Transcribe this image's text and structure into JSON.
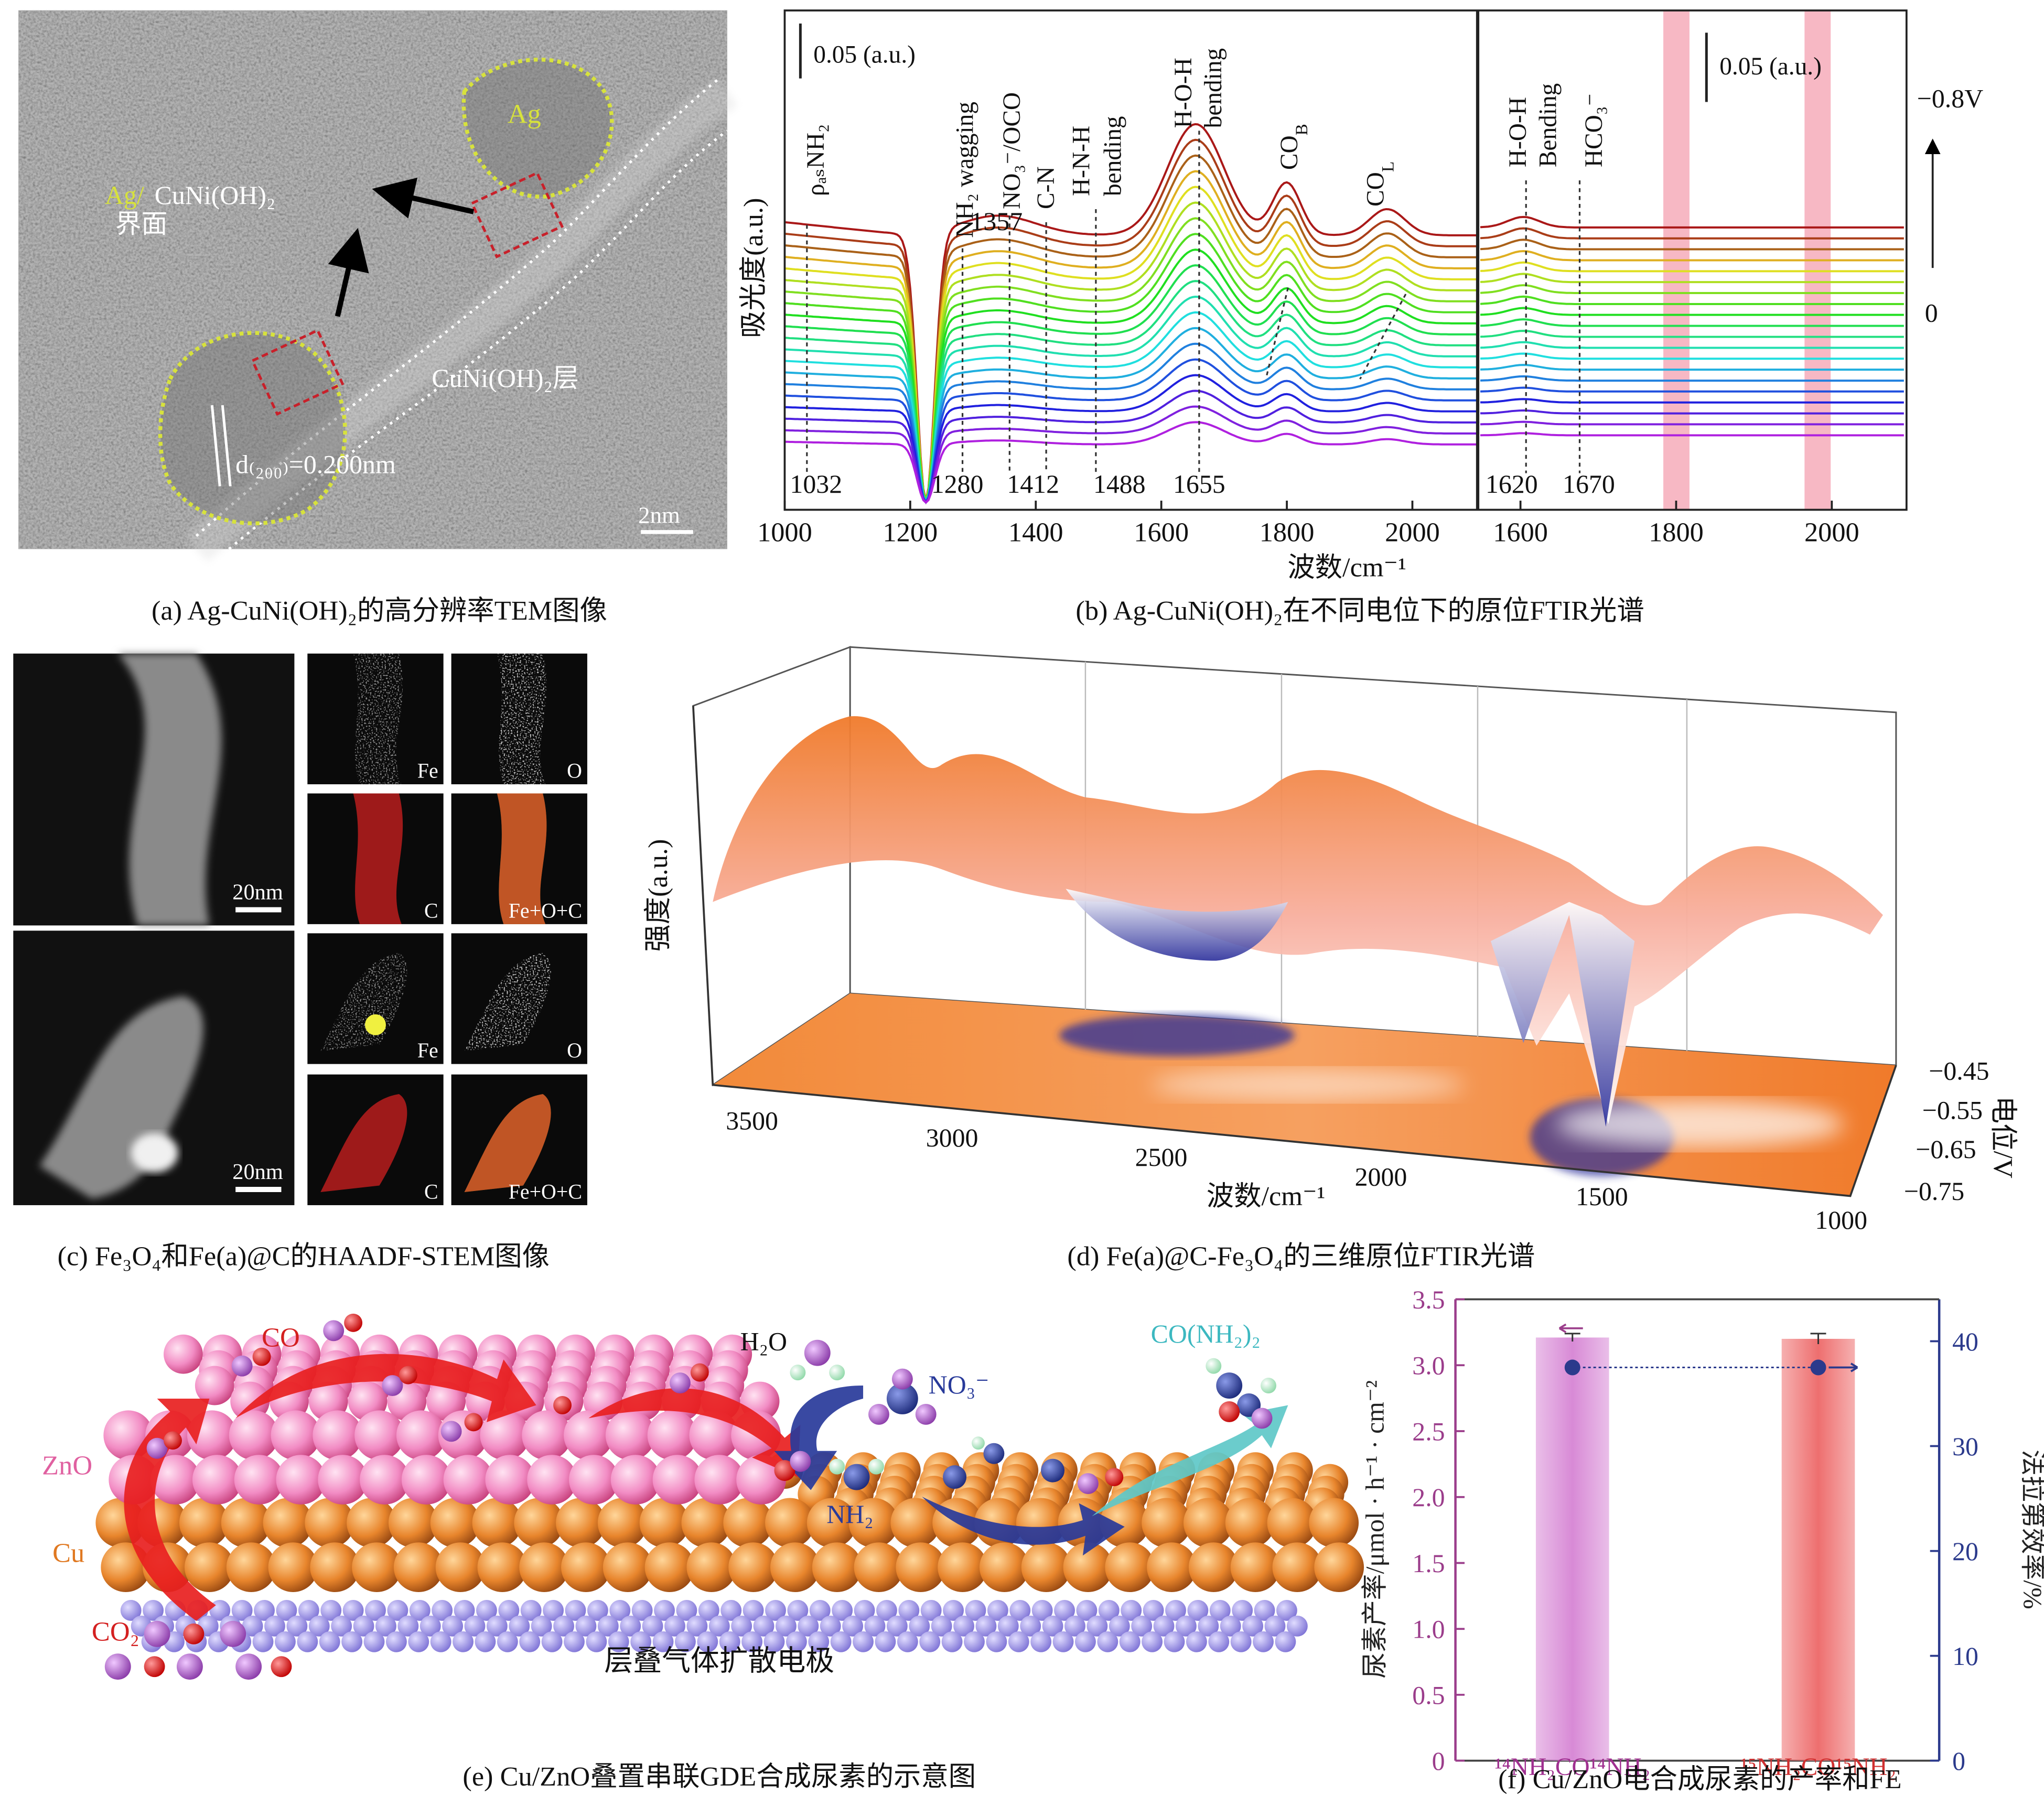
{
  "figure": {
    "a": {
      "caption": "(a) Ag-CuNi(OH)₂的高分辨率TEM图像",
      "ag": "Ag",
      "interface_ag": "Ag/",
      "interface_phase": "CuNi(OH)₂",
      "interface_word": "界面",
      "layer": "CuNi(OH)₂层",
      "spacing": "d₍₂₀₀₎=0.200nm",
      "scale": "2nm"
    },
    "b": {
      "caption": "(b) Ag-CuNi(OH)₂在不同电位下的原位FTIR光谱",
      "y_label": "吸光度(a.u.)",
      "x_label": "波数/cm⁻¹",
      "scale_left": "0.05 (a.u.)",
      "scale_right": "0.05 (a.u.)",
      "potential_top": "−0.8V",
      "potential_bottom": "0",
      "annotations_left": [
        "ρₐₛNH₂",
        "NH₂ wagging",
        "NO₃⁻/OCO",
        "C-N",
        "H-N-H",
        "bending",
        "H-O-H",
        "bending",
        [
          "CO",
          "B"
        ],
        [
          "CO",
          "L"
        ]
      ],
      "positions_left": [
        "1032",
        "1280",
        "1357",
        "1412",
        "1488",
        "1655"
      ],
      "annotations_right": [
        "H-O-H",
        "Bending",
        "HCO₃⁻"
      ],
      "positions_right": [
        "1620",
        "1670"
      ],
      "xlim_left": [
        1000,
        2104
      ],
      "xticks_left": [
        1000,
        1200,
        1400,
        1600,
        1800,
        2000
      ],
      "xlim_right": [
        1545,
        2096
      ],
      "xticks_right": [
        1600,
        1800,
        2000
      ]
    },
    "c": {
      "caption": "(c) Fe₃O₄和Fe(a)@C的HAADF-STEM图像",
      "fe": "Fe",
      "o": "O",
      "c": "C",
      "merged": "Fe+O+C",
      "scale": "20nm"
    },
    "d": {
      "caption": "(d) Fe(a)@C-Fe₃O₄的三维原位FTIR光谱",
      "y_label": "强度(a.u.)",
      "x_label": "波数/cm⁻¹",
      "z_label": "电位/V",
      "x_ticks": [
        "3500",
        "3000",
        "2500",
        "2000",
        "1500",
        "1000"
      ],
      "z_ticks": [
        "−0.45",
        "−0.55",
        "−0.65",
        "−0.75"
      ]
    },
    "e": {
      "caption": "(e) Cu/ZnO叠置串联GDE合成尿素的示意图",
      "co": "CO",
      "h2o": "H₂O",
      "no3": "NO₃⁻",
      "urea": "CO(NH₂)₂",
      "zno": "ZnO",
      "cu": "Cu",
      "co2": "CO₂",
      "nh2": "NH₂",
      "electrode": "层叠气体扩散电极"
    }
  },
  "chart_data": {
    "type": "bar",
    "caption": "(f) Cu/ZnO电合成尿素的产率和FE",
    "categories": [
      "¹⁴NH₂CO¹⁴NH₂",
      "¹⁵NH₂CO¹⁵NH₂"
    ],
    "series": [
      {
        "values": [
          3.21,
          3.2
        ],
        "errors": [
          0.03,
          0.04
        ],
        "colors": [
          "#d88ad6",
          "#ee6f6f"
        ]
      },
      {
        "axis": "y2",
        "values": [
          37.5,
          37.5
        ],
        "color": "#2b3a8c"
      }
    ],
    "ylabel": "尿素产率/μmol · h⁻¹ · cm⁻²",
    "y2label": "法拉第效率/%",
    "ylim": [
      0,
      3.5
    ],
    "yticks": [
      0,
      0.5,
      {
        "value": 1,
        "label": "1.0"
      },
      1.5,
      {
        "value": 2,
        "label": "2.0"
      },
      2.5,
      {
        "value": 3,
        "label": "3.0"
      },
      3.5
    ],
    "y2lim": [
      0,
      44
    ],
    "y2ticks": [
      0,
      10,
      20,
      30,
      40
    ],
    "ycolor": "#9b3d8b",
    "y2color": "#2b3a8c"
  }
}
